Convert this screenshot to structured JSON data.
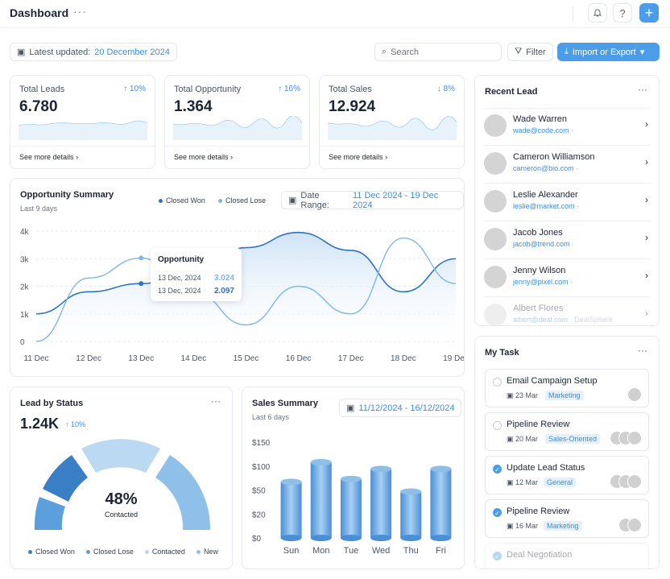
{
  "header": {
    "title": "Dashboard",
    "more": "···",
    "bell_icon": "bell-icon",
    "help_icon": "help-icon",
    "add_icon": "plus-icon"
  },
  "toolbar": {
    "updated_label": "Latest updated:",
    "updated_date": "20 December 2024",
    "search_placeholder": "Search",
    "filter_label": "Filter",
    "import_label": "Import or Export"
  },
  "stats": [
    {
      "label": "Total Leads",
      "value": "6.780",
      "change": "↑ 10%",
      "link": "See more details"
    },
    {
      "label": "Total Opportunity",
      "value": "1.364",
      "change": "↑ 16%",
      "link": "See more details"
    },
    {
      "label": "Total Sales",
      "value": "12.924",
      "change": "↓ 8%",
      "link": "See more details"
    }
  ],
  "opportunity": {
    "title": "Opportunity Summary",
    "subtitle": "Last 9 days",
    "legend": [
      "Closed Won",
      "Closed Lose"
    ],
    "range_label": "Date Range:",
    "range_value": "11 Dec 2024 - 19 Dec 2024",
    "tooltip": {
      "title": "Opportunity",
      "rows": [
        {
          "date": "13 Dec, 2024",
          "value": "3.024"
        },
        {
          "date": "13 Dec, 2024",
          "value": "2.097"
        }
      ]
    },
    "colors": {
      "won": "#2f74c0",
      "lose": "#7fb7e6"
    }
  },
  "chart_data": [
    {
      "type": "line",
      "title": "Opportunity Summary",
      "x": [
        "11 Dec",
        "12 Dec",
        "13 Dec",
        "14 Dec",
        "15 Dec",
        "16 Dec",
        "17 Dec",
        "18 Dec",
        "19 Dec"
      ],
      "y_ticks": [
        "0",
        "1k",
        "2k",
        "3k",
        "4k"
      ],
      "ylim": [
        0,
        4000
      ],
      "series": [
        {
          "name": "Closed Won",
          "values": [
            1000,
            1800,
            2097,
            2500,
            3400,
            3950,
            3300,
            1800,
            3000
          ]
        },
        {
          "name": "Closed Lose",
          "values": [
            0,
            2300,
            3024,
            1800,
            600,
            2000,
            1000,
            3750,
            2100
          ]
        }
      ]
    },
    {
      "type": "bar",
      "title": "Sales Summary",
      "categories": [
        "Sun",
        "Mon",
        "Tue",
        "Wed",
        "Thu",
        "Fri"
      ],
      "values": [
        67,
        108,
        73,
        94,
        48,
        94
      ],
      "y_ticks": [
        "$0",
        "$20",
        "$50",
        "$100",
        "$150"
      ],
      "ylim": [
        0,
        150
      ]
    }
  ],
  "lead_status": {
    "title": "Lead by Status",
    "more": "···",
    "value": "1.24K",
    "change": "↑ 10%",
    "gauge_pct": "48%",
    "gauge_label": "Contacted",
    "legend": [
      "Closed Won",
      "Closed Lose",
      "Contacted",
      "New"
    ],
    "colors": [
      "#3a7fc6",
      "#5b9fdc",
      "#bcd9f2",
      "#8fc0ea"
    ]
  },
  "sales": {
    "title": "Sales Summary",
    "subtitle": "Last 6 days",
    "range": "11/12/2024 - 16/12/2024"
  },
  "recent_lead": {
    "title": "Recent Lead",
    "more": "···",
    "items": [
      {
        "name": "Wade Warren",
        "email": "wade@code.com",
        "extra": "·"
      },
      {
        "name": "Cameron Williamson",
        "email": "cameron@bio.com",
        "extra": "·"
      },
      {
        "name": "Leslie Alexander",
        "email": "leslie@market.com",
        "extra": "·"
      },
      {
        "name": "Jacob Jones",
        "email": "jacob@trend.com",
        "extra": "·"
      },
      {
        "name": "Jenny Wilson",
        "email": "jenny@pixel.com",
        "extra": "·"
      },
      {
        "name": "Albert Flores",
        "email": "albert@deal.com",
        "extra": "· DealSphere"
      }
    ]
  },
  "my_task": {
    "title": "My Task",
    "more": "···",
    "items": [
      {
        "title": "Email Campaign Setup",
        "date": "23 Mar",
        "tag": "Marketing",
        "done": false
      },
      {
        "title": "Pipeline Review",
        "date": "20 Mar",
        "tag": "Sales-Oriented",
        "done": false
      },
      {
        "title": "Update Lead Status",
        "date": "12 Mar",
        "tag": "General",
        "done": true
      },
      {
        "title": "Pipeline Review",
        "date": "16 Mar",
        "tag": "Marketing",
        "done": true
      },
      {
        "title": "Deal Negotiation",
        "date": "",
        "tag": "",
        "done": true
      }
    ]
  }
}
